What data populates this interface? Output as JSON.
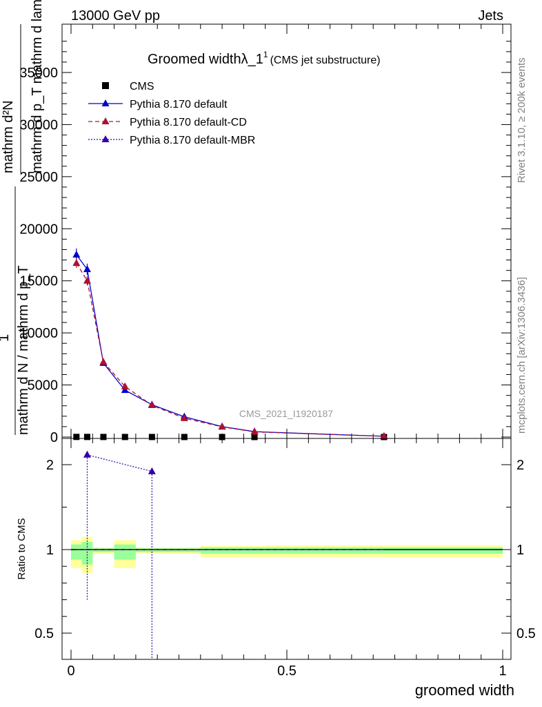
{
  "header": {
    "energy_label": "13000 GeV pp",
    "category_label": "Jets"
  },
  "side_labels": {
    "rivet": "Rivet 3.1.10, ≥ 200k events",
    "mcplots": "mcplots.cern.ch [arXiv:1306.3436]"
  },
  "watermark": "CMS_2021_I1920187",
  "chart_data": {
    "type": "line",
    "title_main": "Groomed widthλ_1",
    "title_sup": "1",
    "title_sub": "(CMS jet substructure)",
    "xlabel": "groomed width",
    "ylabel_num": "mathrm d²N",
    "ylabel_den": "mathrm d p_T mathrm d lambda",
    "ylabel_prefix": "1",
    "ylabel_prefix_den": "mathrm d N / mathrm d p_T",
    "ylabel_sub": "T",
    "ratio_ylabel": "Ratio to CMS",
    "xlim": [
      0,
      1
    ],
    "ylim": [
      0,
      39000
    ],
    "ratio_ylim": [
      0.38,
      2.4
    ],
    "x_ticks": [
      {
        "v": 0,
        "label": "0"
      },
      {
        "v": 0.5,
        "label": "0.5"
      },
      {
        "v": 1,
        "label": "1"
      }
    ],
    "y_ticks": [
      {
        "v": 0,
        "label": "0"
      },
      {
        "v": 5000,
        "label": "5000"
      },
      {
        "v": 10000,
        "label": "10000"
      },
      {
        "v": 15000,
        "label": "15000"
      },
      {
        "v": 20000,
        "label": "20000"
      },
      {
        "v": 25000,
        "label": "25000"
      },
      {
        "v": 30000,
        "label": "30000"
      },
      {
        "v": 35000,
        "label": "35000"
      }
    ],
    "ratio_ticks": [
      {
        "v": 0.5,
        "label": "0.5"
      },
      {
        "v": 1,
        "label": "1"
      },
      {
        "v": 2,
        "label": "2"
      }
    ],
    "bin_edges": [
      0,
      0.025,
      0.05,
      0.1,
      0.15,
      0.225,
      0.3,
      0.4,
      0.45,
      1.0
    ],
    "data": {
      "name": "CMS",
      "x": [
        0.0125,
        0.0375,
        0.075,
        0.125,
        0.1875,
        0.2625,
        0.35,
        0.425,
        0.725
      ],
      "y": [
        12,
        10,
        7,
        5,
        4,
        3,
        2,
        1,
        1
      ]
    },
    "series": [
      {
        "name": "Pythia 8.170 default",
        "color": "#0000cc",
        "style": "solid",
        "x": [
          0.0125,
          0.0375,
          0.075,
          0.125,
          0.1875,
          0.2625,
          0.35,
          0.425,
          0.725
        ],
        "y": [
          17500,
          16100,
          7100,
          4500,
          3100,
          1950,
          1000,
          520,
          75
        ],
        "err": [
          600,
          550,
          250,
          160,
          110,
          80,
          50,
          30,
          8
        ]
      },
      {
        "name": "Pythia 8.170 default-CD",
        "color": "#b01030",
        "style": "dashed",
        "x": [
          0.0125,
          0.0375,
          0.075,
          0.125,
          0.1875,
          0.2625,
          0.35,
          0.425,
          0.725
        ],
        "y": [
          16700,
          15000,
          7200,
          4850,
          3050,
          1800,
          980,
          490,
          70
        ],
        "err": [
          450,
          450,
          220,
          160,
          110,
          75,
          45,
          28,
          8
        ]
      },
      {
        "name": "Pythia 8.170 default-MBR",
        "color": "#3300aa",
        "style": "dotted",
        "x": [],
        "y": [],
        "ratio_x": [
          0.0375,
          0.1875
        ],
        "ratio_y": [
          2.15,
          1.92
        ]
      }
    ],
    "ratio_bands": [
      {
        "x0": 0.0,
        "x1": 0.025,
        "green": [
          0.94,
          1.06
        ],
        "yellow": [
          0.89,
          1.11
        ]
      },
      {
        "x0": 0.025,
        "x1": 0.05,
        "green": [
          0.91,
          1.09
        ],
        "yellow": [
          0.86,
          1.15
        ]
      },
      {
        "x0": 0.05,
        "x1": 0.1,
        "green": [
          0.985,
          1.015
        ],
        "yellow": [
          0.975,
          1.025
        ]
      },
      {
        "x0": 0.1,
        "x1": 0.15,
        "green": [
          0.94,
          1.06
        ],
        "yellow": [
          0.89,
          1.11
        ]
      },
      {
        "x0": 0.15,
        "x1": 0.3,
        "green": [
          0.985,
          1.015
        ],
        "yellow": [
          0.975,
          1.025
        ]
      },
      {
        "x0": 0.3,
        "x1": 0.45,
        "green": [
          0.975,
          1.025
        ],
        "yellow": [
          0.955,
          1.045
        ]
      },
      {
        "x0": 0.45,
        "x1": 1.0,
        "green": [
          0.975,
          1.025
        ],
        "yellow": [
          0.955,
          1.05
        ]
      }
    ],
    "ratio_mbr_error_lines": [
      {
        "x": 0.0375,
        "lo": 0.7,
        "hi": 2.15
      },
      {
        "x": 0.1875,
        "lo": 0.38,
        "hi": 1.92
      }
    ]
  }
}
